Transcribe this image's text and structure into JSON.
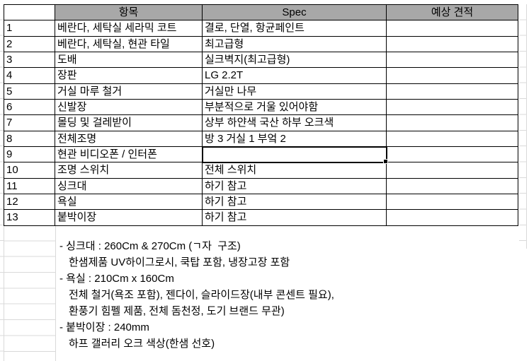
{
  "colors": {
    "header_fill": "#a8a8a8",
    "grid_faint": "#d9d9d9",
    "border": "#000000",
    "selection": "#000000"
  },
  "table": {
    "headers": {
      "num": "",
      "item": "항목",
      "spec": "Spec",
      "quote": "예상 견적"
    },
    "rows": [
      {
        "num": "1",
        "item": "베란다, 세탁실 세라믹 코트",
        "spec": "결로, 단열, 항균페인트",
        "quote": ""
      },
      {
        "num": "2",
        "item": "베란다, 세탁실, 현관 타일",
        "spec": "최고급형",
        "quote": ""
      },
      {
        "num": "3",
        "item": "도배",
        "spec": "실크벽지(최고급형)",
        "quote": ""
      },
      {
        "num": "4",
        "item": "장판",
        "spec": "LG 2.2T",
        "quote": ""
      },
      {
        "num": "5",
        "item": "거실 마루 철거",
        "spec": "거실만 나무",
        "quote": ""
      },
      {
        "num": "6",
        "item": "신발장",
        "spec": "부분적으로 거울 있어야함",
        "quote": ""
      },
      {
        "num": "7",
        "item": "몰딩 및 걸레받이",
        "spec": "상부 하얀색 국산 하부 오크색",
        "quote": ""
      },
      {
        "num": "8",
        "item": "전체조명",
        "spec": "방 3 거실 1 부엌 2",
        "quote": ""
      },
      {
        "num": "9",
        "item": "현관 비디오폰 / 인터폰",
        "spec": "",
        "quote": "",
        "selected": "spec"
      },
      {
        "num": "10",
        "item": "조명 스위치",
        "spec": "전체 스위치",
        "quote": ""
      },
      {
        "num": "11",
        "item": "싱크대",
        "spec": "하기 참고",
        "quote": ""
      },
      {
        "num": "12",
        "item": "욕실",
        "spec": "하기 참고",
        "quote": ""
      },
      {
        "num": "13",
        "item": "붙박이장",
        "spec": "하기 참고",
        "quote": ""
      }
    ]
  },
  "notes": {
    "lines": [
      {
        "text": "- 싱크대 : 260Cm & 270Cm (ㄱ자  구조)",
        "indent": false
      },
      {
        "text": "한샘제품 UV하이그로시, 쿡탑 포함, 냉장고장 포함",
        "indent": true
      },
      {
        "text": "- 욕실 : 210Cm x 160Cm",
        "indent": false
      },
      {
        "text": "전체 철거(욕조 포함), 젠다이, 슬라이드장(내부 콘센트 필요),",
        "indent": true
      },
      {
        "text": "환풍기 힘펠 제품, 전체 돔천정, 도기 브랜드 무관)",
        "indent": true
      },
      {
        "text": "- 붙박이장 : 240mm",
        "indent": false
      },
      {
        "text": "하프 갤러리 오크 색상(한샘 선호)",
        "indent": true
      }
    ]
  }
}
